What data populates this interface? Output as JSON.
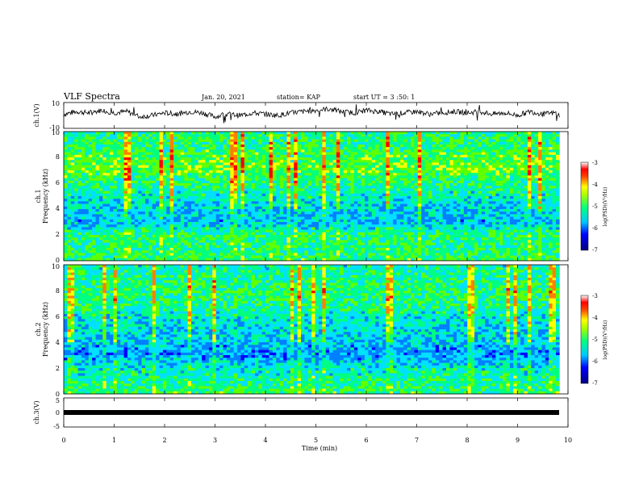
{
  "header": {
    "title": "VLF Spectra",
    "date": "Jan. 20, 2021",
    "station": "station= KAP",
    "start": "start UT = 3 :50: 1"
  },
  "palette": {
    "colors": [
      "#000080",
      "#0000ff",
      "#0080ff",
      "#00e0ff",
      "#00ff80",
      "#60ff00",
      "#ffff00",
      "#ff8000",
      "#ff0000",
      "#ffffff"
    ]
  },
  "chart_data": [
    {
      "type": "line",
      "name": "ch1-waveform",
      "ylabel": "ch.1(V)",
      "ylim": [
        -10,
        10
      ],
      "y_ticks": [
        "10",
        "-10"
      ],
      "x": [
        0,
        0.25,
        0.5,
        0.75,
        1.0,
        1.25,
        1.5,
        1.75,
        2.0,
        2.25,
        2.5,
        2.75,
        3.0,
        3.25,
        3.5,
        3.75,
        4.0,
        4.25,
        4.5,
        4.75,
        5.0,
        5.25,
        5.5,
        5.75,
        6.0,
        6.25,
        6.5,
        6.75,
        7.0,
        7.25,
        7.5,
        7.75,
        8.0,
        8.25,
        8.5,
        8.75,
        9.0,
        9.25,
        9.5,
        9.75,
        9.83
      ],
      "values": [
        1,
        3,
        2,
        4,
        2,
        3,
        -1,
        0,
        2,
        1,
        3,
        2,
        -1,
        1,
        0,
        2,
        1,
        0,
        2,
        3,
        4,
        5,
        3,
        2,
        4,
        3,
        1,
        2,
        3,
        1,
        2,
        3,
        2,
        3,
        1,
        2,
        0,
        3,
        1,
        2,
        0
      ]
    },
    {
      "type": "heatmap",
      "name": "ch1-spectrogram",
      "ylabel": "ch.1\nFrequency (kHz)",
      "ylim": [
        0,
        10
      ],
      "y_ticks": [
        "0",
        "2",
        "4",
        "6",
        "8",
        "10"
      ],
      "x_range_min": [
        0,
        9.83
      ],
      "colorbar": {
        "ticks": [
          "-3",
          "-4",
          "-5",
          "-6",
          "-7"
        ],
        "label": "log(PSD)(V²/Hz)"
      },
      "level_by_frequency_khz": [
        {
          "f": 0,
          "level": -4.8
        },
        {
          "f": 1,
          "level": -5.0
        },
        {
          "f": 2,
          "level": -4.9
        },
        {
          "f": 3,
          "level": -5.7
        },
        {
          "f": 4,
          "level": -5.5
        },
        {
          "f": 5,
          "level": -5.3
        },
        {
          "f": 6,
          "level": -5.0
        },
        {
          "f": 7,
          "level": -4.6
        },
        {
          "f": 8,
          "level": -4.7
        },
        {
          "f": 9,
          "level": -4.9
        },
        {
          "f": 10,
          "level": -5.0
        }
      ]
    },
    {
      "type": "heatmap",
      "name": "ch2-spectrogram",
      "ylabel": "ch.2\nFrequency (kHz)",
      "ylim": [
        0,
        10
      ],
      "y_ticks": [
        "0",
        "2",
        "4",
        "6",
        "8",
        "10"
      ],
      "x_range_min": [
        0,
        9.83
      ],
      "colorbar": {
        "ticks": [
          "-3",
          "-4",
          "-5",
          "-6",
          "-7"
        ],
        "label": "log(PSD)(V²/Hz)"
      },
      "level_by_frequency_khz": [
        {
          "f": 0,
          "level": -4.8
        },
        {
          "f": 1,
          "level": -5.1
        },
        {
          "f": 2,
          "level": -5.3
        },
        {
          "f": 3,
          "level": -5.9
        },
        {
          "f": 4,
          "level": -5.6
        },
        {
          "f": 5,
          "level": -5.5
        },
        {
          "f": 6,
          "level": -5.3
        },
        {
          "f": 7,
          "level": -5.0
        },
        {
          "f": 8,
          "level": -4.9
        },
        {
          "f": 9,
          "level": -5.1
        },
        {
          "f": 10,
          "level": -5.2
        }
      ]
    },
    {
      "type": "line",
      "name": "ch3-waveform",
      "ylabel": "ch.3(V)",
      "ylim": [
        -5,
        5
      ],
      "y_ticks": [
        "5",
        "0",
        "-5"
      ],
      "x": [
        0,
        9.83
      ],
      "values": [
        -0.5,
        -0.5
      ]
    }
  ],
  "xaxis": {
    "label": "Time (min)",
    "ticks": [
      "0",
      "1",
      "2",
      "3",
      "4",
      "5",
      "6",
      "7",
      "8",
      "9",
      "10"
    ],
    "range": [
      0,
      10
    ]
  }
}
